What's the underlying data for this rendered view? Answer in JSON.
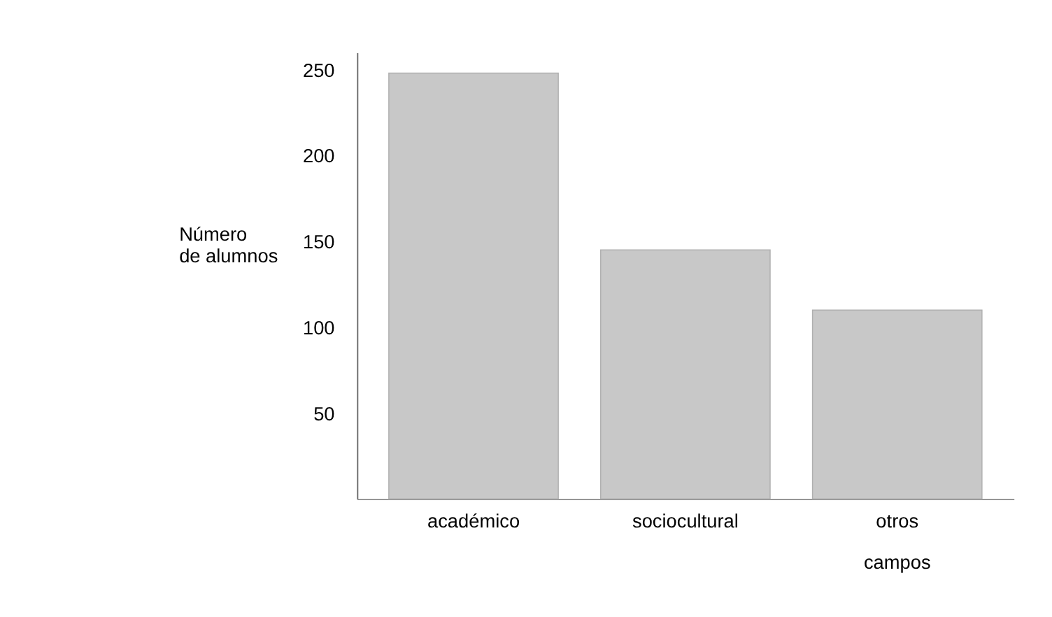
{
  "chart_data": {
    "type": "bar",
    "ylabel": "Número de alumnos",
    "categories": [
      "académico",
      "sociocultural",
      "otros campos"
    ],
    "values": [
      248,
      145,
      110
    ],
    "color": "#c8c8c8",
    "ylim": [
      0,
      260
    ],
    "yticks": [
      50,
      100,
      150,
      200,
      250
    ],
    "grid": false
  }
}
